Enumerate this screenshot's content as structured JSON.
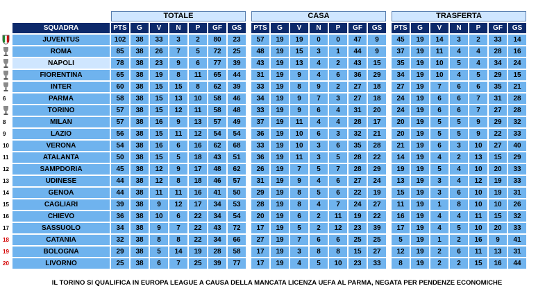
{
  "group_headers": {
    "totale": "TOTALE",
    "casa": "CASA",
    "trasferta": "TRASFERTA"
  },
  "team_header": "SQUADRA",
  "stat_headers": [
    "PTS",
    "G",
    "V",
    "N",
    "P",
    "GF",
    "GS"
  ],
  "rows": [
    {
      "rank": "",
      "team": "JUVENTUS",
      "emblem": "scudetto-icon",
      "totale": [
        "102",
        "38",
        "33",
        "3",
        "2",
        "80",
        "23"
      ],
      "casa": [
        "57",
        "19",
        "19",
        "0",
        "0",
        "47",
        "9"
      ],
      "trasferta": [
        "45",
        "19",
        "14",
        "3",
        "2",
        "33",
        "14"
      ]
    },
    {
      "rank": "",
      "team": "ROMA",
      "emblem": "trophy-icon",
      "totale": [
        "85",
        "38",
        "26",
        "7",
        "5",
        "72",
        "25"
      ],
      "casa": [
        "48",
        "19",
        "15",
        "3",
        "1",
        "44",
        "9"
      ],
      "trasferta": [
        "37",
        "19",
        "11",
        "4",
        "4",
        "28",
        "16"
      ]
    },
    {
      "rank": "",
      "team": "NAPOLI",
      "emblem": "trophy-icon",
      "totale": [
        "78",
        "38",
        "23",
        "9",
        "6",
        "77",
        "39"
      ],
      "casa": [
        "43",
        "19",
        "13",
        "4",
        "2",
        "43",
        "15"
      ],
      "trasferta": [
        "35",
        "19",
        "10",
        "5",
        "4",
        "34",
        "24"
      ]
    },
    {
      "rank": "",
      "team": "FIORENTINA",
      "emblem": "trophy-icon",
      "totale": [
        "65",
        "38",
        "19",
        "8",
        "11",
        "65",
        "44"
      ],
      "casa": [
        "31",
        "19",
        "9",
        "4",
        "6",
        "36",
        "29"
      ],
      "trasferta": [
        "34",
        "19",
        "10",
        "4",
        "5",
        "29",
        "15"
      ]
    },
    {
      "rank": "",
      "team": "INTER",
      "emblem": "trophy-icon",
      "totale": [
        "60",
        "38",
        "15",
        "15",
        "8",
        "62",
        "39"
      ],
      "casa": [
        "33",
        "19",
        "8",
        "9",
        "2",
        "27",
        "18"
      ],
      "trasferta": [
        "27",
        "19",
        "7",
        "6",
        "6",
        "35",
        "21"
      ]
    },
    {
      "rank": "6",
      "team": "PARMA",
      "emblem": "",
      "totale": [
        "58",
        "38",
        "15",
        "13",
        "10",
        "58",
        "46"
      ],
      "casa": [
        "34",
        "19",
        "9",
        "7",
        "3",
        "27",
        "18"
      ],
      "trasferta": [
        "24",
        "19",
        "6",
        "6",
        "7",
        "31",
        "28"
      ]
    },
    {
      "rank": "",
      "team": "TORINO",
      "emblem": "trophy-icon",
      "totale": [
        "57",
        "38",
        "15",
        "12",
        "11",
        "58",
        "48"
      ],
      "casa": [
        "33",
        "19",
        "9",
        "6",
        "4",
        "31",
        "20"
      ],
      "trasferta": [
        "24",
        "19",
        "6",
        "6",
        "7",
        "27",
        "28"
      ]
    },
    {
      "rank": "8",
      "team": "MILAN",
      "emblem": "",
      "totale": [
        "57",
        "38",
        "16",
        "9",
        "13",
        "57",
        "49"
      ],
      "casa": [
        "37",
        "19",
        "11",
        "4",
        "4",
        "28",
        "17"
      ],
      "trasferta": [
        "20",
        "19",
        "5",
        "5",
        "9",
        "29",
        "32"
      ]
    },
    {
      "rank": "9",
      "team": "LAZIO",
      "emblem": "",
      "totale": [
        "56",
        "38",
        "15",
        "11",
        "12",
        "54",
        "54"
      ],
      "casa": [
        "36",
        "19",
        "10",
        "6",
        "3",
        "32",
        "21"
      ],
      "trasferta": [
        "20",
        "19",
        "5",
        "5",
        "9",
        "22",
        "33"
      ]
    },
    {
      "rank": "10",
      "team": "VERONA",
      "emblem": "",
      "totale": [
        "54",
        "38",
        "16",
        "6",
        "16",
        "62",
        "68"
      ],
      "casa": [
        "33",
        "19",
        "10",
        "3",
        "6",
        "35",
        "28"
      ],
      "trasferta": [
        "21",
        "19",
        "6",
        "3",
        "10",
        "27",
        "40"
      ]
    },
    {
      "rank": "11",
      "team": "ATALANTA",
      "emblem": "",
      "totale": [
        "50",
        "38",
        "15",
        "5",
        "18",
        "43",
        "51"
      ],
      "casa": [
        "36",
        "19",
        "11",
        "3",
        "5",
        "28",
        "22"
      ],
      "trasferta": [
        "14",
        "19",
        "4",
        "2",
        "13",
        "15",
        "29"
      ]
    },
    {
      "rank": "12",
      "team": "SAMPDORIA",
      "emblem": "",
      "totale": [
        "45",
        "38",
        "12",
        "9",
        "17",
        "48",
        "62"
      ],
      "casa": [
        "26",
        "19",
        "7",
        "5",
        "7",
        "28",
        "29"
      ],
      "trasferta": [
        "19",
        "19",
        "5",
        "4",
        "10",
        "20",
        "33"
      ]
    },
    {
      "rank": "13",
      "team": "UDINESE",
      "emblem": "",
      "totale": [
        "44",
        "38",
        "12",
        "8",
        "18",
        "46",
        "57"
      ],
      "casa": [
        "31",
        "19",
        "9",
        "4",
        "6",
        "27",
        "24"
      ],
      "trasferta": [
        "13",
        "19",
        "3",
        "4",
        "12",
        "19",
        "33"
      ]
    },
    {
      "rank": "14",
      "team": "GENOA",
      "emblem": "",
      "totale": [
        "44",
        "38",
        "11",
        "11",
        "16",
        "41",
        "50"
      ],
      "casa": [
        "29",
        "19",
        "8",
        "5",
        "6",
        "22",
        "19"
      ],
      "trasferta": [
        "15",
        "19",
        "3",
        "6",
        "10",
        "19",
        "31"
      ]
    },
    {
      "rank": "15",
      "team": "CAGLIARI",
      "emblem": "",
      "totale": [
        "39",
        "38",
        "9",
        "12",
        "17",
        "34",
        "53"
      ],
      "casa": [
        "28",
        "19",
        "8",
        "4",
        "7",
        "24",
        "27"
      ],
      "trasferta": [
        "11",
        "19",
        "1",
        "8",
        "10",
        "10",
        "26"
      ]
    },
    {
      "rank": "16",
      "team": "CHIEVO",
      "emblem": "",
      "totale": [
        "36",
        "38",
        "10",
        "6",
        "22",
        "34",
        "54"
      ],
      "casa": [
        "20",
        "19",
        "6",
        "2",
        "11",
        "19",
        "22"
      ],
      "trasferta": [
        "16",
        "19",
        "4",
        "4",
        "11",
        "15",
        "32"
      ]
    },
    {
      "rank": "17",
      "team": "SASSUOLO",
      "emblem": "",
      "totale": [
        "34",
        "38",
        "9",
        "7",
        "22",
        "43",
        "72"
      ],
      "casa": [
        "17",
        "19",
        "5",
        "2",
        "12",
        "23",
        "39"
      ],
      "trasferta": [
        "17",
        "19",
        "4",
        "5",
        "10",
        "20",
        "33"
      ]
    },
    {
      "rank": "18",
      "team": "CATANIA",
      "emblem": "",
      "relegated": true,
      "totale": [
        "32",
        "38",
        "8",
        "8",
        "22",
        "34",
        "66"
      ],
      "casa": [
        "27",
        "19",
        "7",
        "6",
        "6",
        "25",
        "25"
      ],
      "trasferta": [
        "5",
        "19",
        "1",
        "2",
        "16",
        "9",
        "41"
      ]
    },
    {
      "rank": "19",
      "team": "BOLOGNA",
      "emblem": "",
      "relegated": true,
      "totale": [
        "29",
        "38",
        "5",
        "14",
        "19",
        "28",
        "58"
      ],
      "casa": [
        "17",
        "19",
        "3",
        "8",
        "8",
        "15",
        "27"
      ],
      "trasferta": [
        "12",
        "19",
        "2",
        "6",
        "11",
        "13",
        "31"
      ]
    },
    {
      "rank": "20",
      "team": "LIVORNO",
      "emblem": "",
      "relegated": true,
      "totale": [
        "25",
        "38",
        "6",
        "7",
        "25",
        "39",
        "77"
      ],
      "casa": [
        "17",
        "19",
        "4",
        "5",
        "10",
        "23",
        "33"
      ],
      "trasferta": [
        "8",
        "19",
        "2",
        "2",
        "15",
        "16",
        "44"
      ]
    }
  ],
  "footnote": "IL TORINO SI QUALIFICA IN EUROPA LEAGUE A CAUSA DELLA MANCATA LICENZA UEFA AL PARMA, NEGATA PER PENDENZE ECONOMICHE",
  "colors": {
    "cell": "#6fb3ee",
    "header": "#0d2a6b",
    "group_header": "#cfe6ff",
    "relegation_rank": "#d40000"
  }
}
